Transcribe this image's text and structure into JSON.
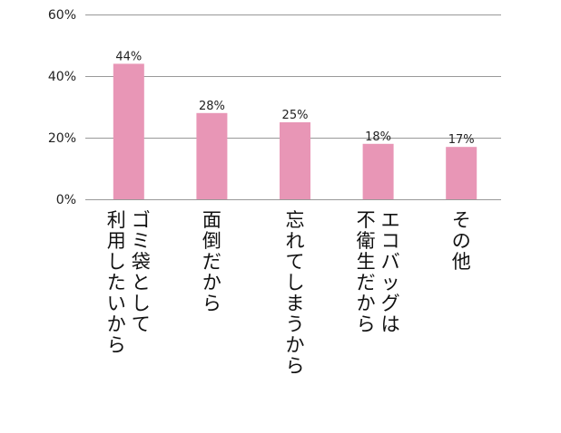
{
  "chart_data": {
    "type": "bar",
    "categories": [
      "ゴミ袋として利用したいから",
      "面倒だから",
      "忘れてしまうから",
      "エコバッグは不衛生だから",
      "その他"
    ],
    "category_lines": [
      [
        "ゴミ袋として",
        "利用したいから"
      ],
      [
        "面倒だから"
      ],
      [
        "忘れてしまうから"
      ],
      [
        "エコバッグは",
        "不衛生だから"
      ],
      [
        "その他"
      ]
    ],
    "values": [
      44,
      28,
      25,
      18,
      17
    ],
    "value_labels": [
      "44%",
      "28%",
      "25%",
      "18%",
      "17%"
    ],
    "y_ticks": [
      0,
      20,
      40,
      60
    ],
    "y_tick_labels": [
      "0%",
      "20%",
      "40%",
      "60%"
    ],
    "ylim": [
      0,
      60
    ],
    "grid": true,
    "bar_color": "#e896b6",
    "title": "",
    "xlabel": "",
    "ylabel": ""
  }
}
